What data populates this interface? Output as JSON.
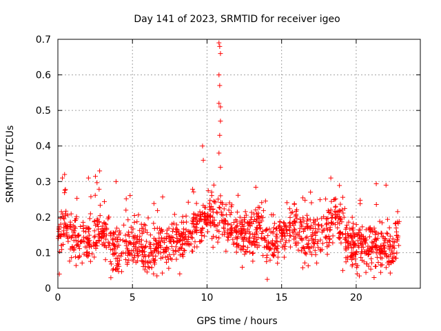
{
  "chart_data": {
    "type": "scatter",
    "title": "Day 141 of 2023, SRMTID for receiver igeo",
    "xlabel": "GPS time / hours",
    "ylabel": "SRMTID / TECUs",
    "xlim": [
      0,
      24.3
    ],
    "ylim": [
      0,
      0.7
    ],
    "x_ticks": [
      0,
      5,
      10,
      15,
      20
    ],
    "y_ticks": [
      0,
      0.1,
      0.2,
      0.3,
      0.4,
      0.5,
      0.6,
      0.7
    ],
    "x_tick_labels": [
      "0",
      "5",
      "10",
      "15",
      "20"
    ],
    "y_tick_labels": [
      "0",
      "0.1",
      "0.2",
      "0.3",
      "0.4",
      "0.5",
      "0.6",
      "0.7"
    ],
    "grid": true,
    "marker": "plus",
    "marker_color": "#ff0000",
    "x_range_of_data": [
      0,
      22.9
    ],
    "series": [
      {
        "name": "SRMTID",
        "trend": [
          [
            0.0,
            0.15
          ],
          [
            0.5,
            0.18
          ],
          [
            1.0,
            0.14
          ],
          [
            2.0,
            0.14
          ],
          [
            3.0,
            0.15
          ],
          [
            4.0,
            0.1
          ],
          [
            5.0,
            0.13
          ],
          [
            6.0,
            0.11
          ],
          [
            7.0,
            0.11
          ],
          [
            8.0,
            0.13
          ],
          [
            9.0,
            0.16
          ],
          [
            9.7,
            0.19
          ],
          [
            10.3,
            0.2
          ],
          [
            11.0,
            0.19
          ],
          [
            12.0,
            0.16
          ],
          [
            13.0,
            0.15
          ],
          [
            13.5,
            0.19
          ],
          [
            14.0,
            0.12
          ],
          [
            15.0,
            0.14
          ],
          [
            15.7,
            0.18
          ],
          [
            16.5,
            0.14
          ],
          [
            17.5,
            0.14
          ],
          [
            18.2,
            0.19
          ],
          [
            18.8,
            0.2
          ],
          [
            19.5,
            0.12
          ],
          [
            20.5,
            0.12
          ],
          [
            21.5,
            0.12
          ],
          [
            22.3,
            0.1
          ],
          [
            22.9,
            0.16
          ]
        ],
        "notable_points": [
          {
            "x": 0.3,
            "y": 0.31
          },
          {
            "x": 0.45,
            "y": 0.32
          },
          {
            "x": 2.05,
            "y": 0.31
          },
          {
            "x": 2.8,
            "y": 0.33
          },
          {
            "x": 3.9,
            "y": 0.3
          },
          {
            "x": 9.7,
            "y": 0.4
          },
          {
            "x": 9.75,
            "y": 0.36
          },
          {
            "x": 10.8,
            "y": 0.69
          },
          {
            "x": 10.85,
            "y": 0.68
          },
          {
            "x": 10.9,
            "y": 0.66
          },
          {
            "x": 10.8,
            "y": 0.6
          },
          {
            "x": 10.85,
            "y": 0.57
          },
          {
            "x": 10.8,
            "y": 0.52
          },
          {
            "x": 10.9,
            "y": 0.51
          },
          {
            "x": 10.9,
            "y": 0.47
          },
          {
            "x": 10.85,
            "y": 0.43
          },
          {
            "x": 10.8,
            "y": 0.38
          },
          {
            "x": 10.9,
            "y": 0.34
          },
          {
            "x": 18.3,
            "y": 0.31
          },
          {
            "x": 22.0,
            "y": 0.29
          },
          {
            "x": 21.2,
            "y": 0.03
          },
          {
            "x": 19.1,
            "y": 0.05
          },
          {
            "x": 0.1,
            "y": 0.04
          }
        ],
        "scatter_half_width": 0.06,
        "n_generated_points": 1500
      }
    ]
  }
}
